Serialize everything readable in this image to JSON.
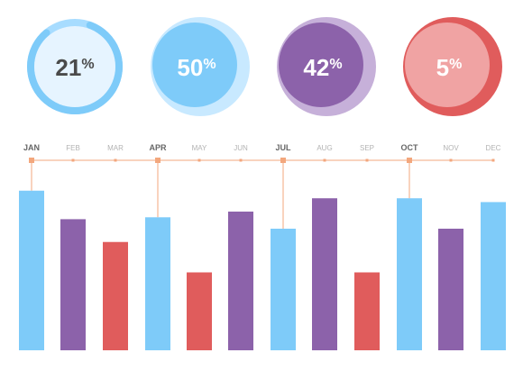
{
  "chart_data": [
    {
      "type": "donut",
      "series": [
        {
          "value_label": "21",
          "unit": "%",
          "value": 21,
          "colors": {
            "center": "#e6f4ff",
            "center_text": "#4a4a4a",
            "ring": "#a7dcff",
            "ring_strong": "#7ecbf9"
          }
        },
        {
          "value_label": "50",
          "unit": "%",
          "value": 50,
          "colors": {
            "center": "#7ecbf9",
            "center_text": "#ffffff",
            "ring": "#c8e9ff",
            "ring_strong": "#c8e9ff"
          }
        },
        {
          "value_label": "42",
          "unit": "%",
          "value": 42,
          "colors": {
            "center": "#8c62aa",
            "center_text": "#ffffff",
            "ring": "#c6b0d9",
            "ring_strong": "#c6b0d9"
          }
        },
        {
          "value_label": "5",
          "unit": "%",
          "value": 5,
          "colors": {
            "center": "#f0a3a3",
            "center_text": "#ffffff",
            "ring": "#e05c5c",
            "ring_strong": "#e05c5c"
          }
        }
      ]
    },
    {
      "type": "bar",
      "categories": [
        "JAN",
        "FEB",
        "MAR",
        "APR",
        "MAY",
        "JUN",
        "JUL",
        "AUG",
        "SEP",
        "OCT",
        "NOV",
        "DEC"
      ],
      "emphasized_categories": [
        "JAN",
        "APR",
        "JUL",
        "OCT"
      ],
      "values": [
        84,
        69,
        57,
        70,
        41,
        73,
        64,
        80,
        41,
        80,
        64,
        78
      ],
      "ylim": [
        0,
        100
      ],
      "bar_colors": [
        "#7ecbf9",
        "#8c62aa",
        "#e05c5c",
        "#7ecbf9",
        "#e05c5c",
        "#8c62aa",
        "#7ecbf9",
        "#8c62aa",
        "#e05c5c",
        "#7ecbf9",
        "#8c62aa",
        "#7ecbf9"
      ],
      "colors": {
        "timeline": "#f3a77d",
        "label_strong": "#666666",
        "label_weak": "#b3b3b3"
      }
    }
  ]
}
